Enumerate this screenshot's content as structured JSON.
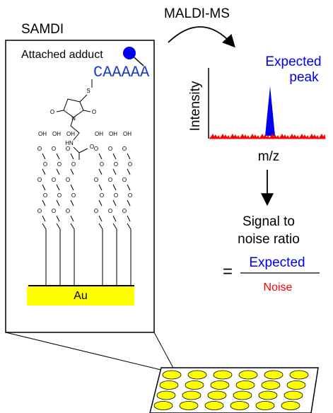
{
  "labels": {
    "samdi": "SAMDI",
    "adduct": "Attached adduct",
    "peptide": "CAAAAA",
    "substrate": "Au",
    "method": "MALDI-MS",
    "peak_label": [
      "Expected",
      "peak"
    ],
    "y_axis": "Intensity",
    "x_axis": "m/z",
    "ratio_title": [
      "Signal to",
      "noise ratio"
    ],
    "equals": "=",
    "numerator": "Expected",
    "denominator": "Noise"
  },
  "molecule": {
    "linker_atoms": [
      "S",
      "O",
      "O",
      "N",
      "HN",
      "O"
    ],
    "chain_head": "OH",
    "chain_atom": "O"
  }
}
